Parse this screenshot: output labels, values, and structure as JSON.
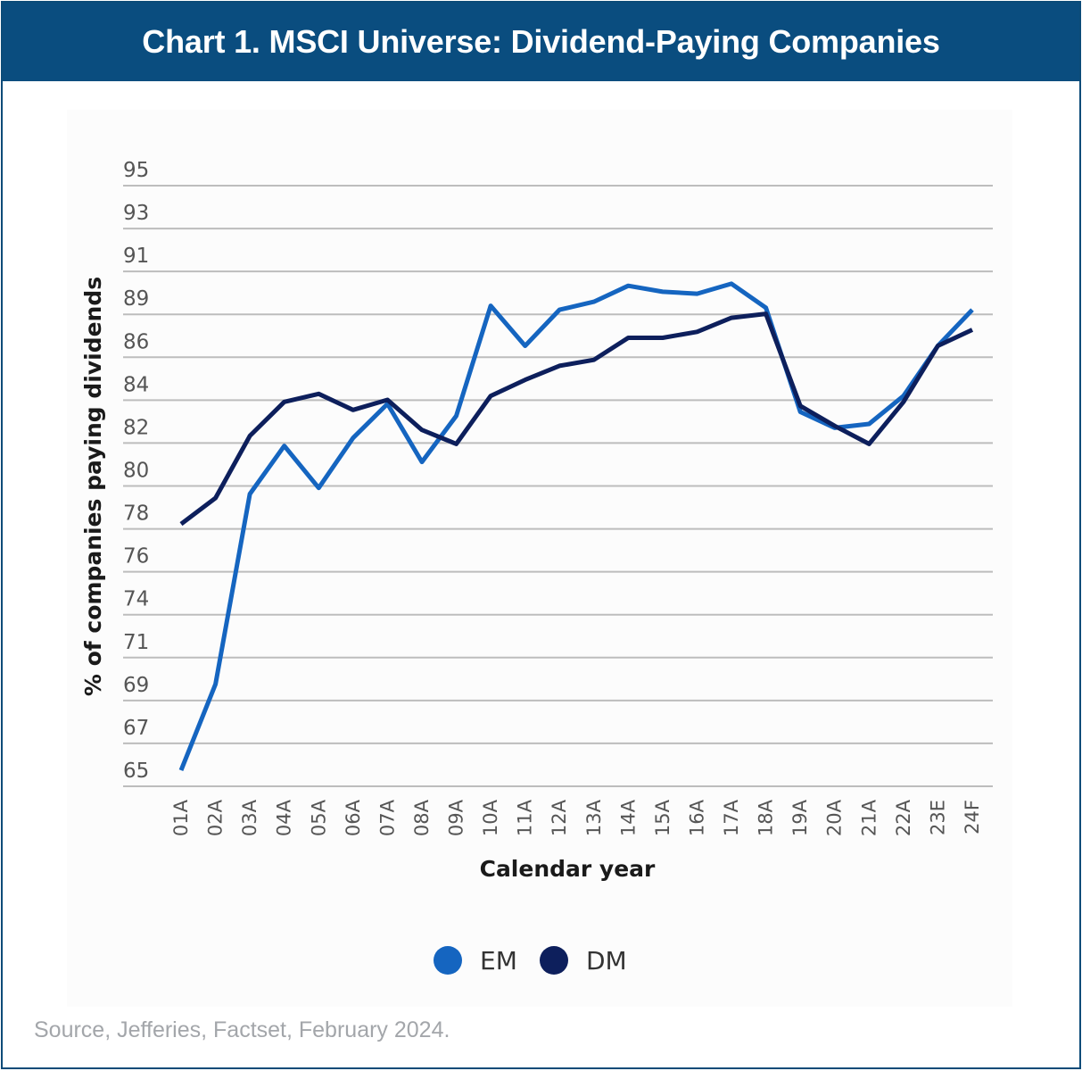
{
  "header": {
    "title": "Chart 1. MSCI Universe: Dividend-Paying Companies"
  },
  "footer": {
    "source": "Source, Jefferies, Factset, February 2024."
  },
  "colors": {
    "header_bg": "#0a4d7f",
    "em": "#1565c0",
    "dm": "#0d1f5c",
    "grid": "#bdbdbd"
  },
  "chart_data": {
    "type": "line",
    "title": "Chart 1. MSCI Universe: Dividend-Paying Companies",
    "xlabel": "Calendar year",
    "ylabel": "% of companies paying dividends",
    "ylim": [
      65,
      95
    ],
    "yticks": [
      "95",
      "93",
      "91",
      "89",
      "86",
      "84",
      "82",
      "80",
      "78",
      "76",
      "74",
      "71",
      "69",
      "67",
      "65"
    ],
    "grid": true,
    "legend_position": "bottom-center",
    "categories": [
      "01A",
      "02A",
      "03A",
      "04A",
      "05A",
      "06A",
      "07A",
      "08A",
      "09A",
      "10A",
      "11A",
      "12A",
      "13A",
      "14A",
      "15A",
      "16A",
      "17A",
      "18A",
      "19A",
      "20A",
      "21A",
      "22A",
      "23E",
      "24F"
    ],
    "series": [
      {
        "name": "EM",
        "color": "#1565c0",
        "values": [
          65.8,
          70.1,
          79.6,
          82.0,
          79.9,
          82.4,
          84.1,
          81.2,
          83.5,
          89.0,
          87.0,
          88.8,
          89.2,
          90.0,
          89.7,
          89.6,
          90.1,
          88.9,
          83.7,
          82.9,
          83.1,
          84.5,
          87.0,
          88.8
        ]
      },
      {
        "name": "DM",
        "color": "#0d1f5c",
        "values": [
          78.1,
          79.4,
          82.5,
          84.2,
          84.6,
          83.8,
          84.3,
          82.8,
          82.1,
          84.5,
          85.3,
          86.0,
          86.3,
          87.4,
          87.4,
          87.7,
          88.4,
          88.6,
          84.0,
          83.0,
          82.1,
          84.2,
          87.0,
          87.8
        ]
      }
    ]
  }
}
